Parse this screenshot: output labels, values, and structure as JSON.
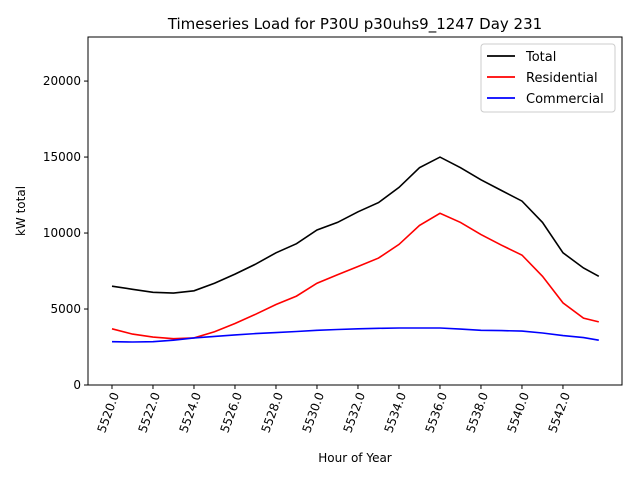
{
  "chart_data": {
    "type": "line",
    "title": "Timeseries Load for P30U p30uhs9_1247  Day 231",
    "xlabel": "Hour of Year",
    "ylabel": "kW total",
    "xlim": [
      5518.83,
      5544.88
    ],
    "ylim": [
      0,
      22900
    ],
    "grid": false,
    "legend_position": "top-right",
    "x_ticks": [
      5520,
      5522,
      5524,
      5526,
      5528,
      5530,
      5532,
      5534,
      5536,
      5538,
      5540,
      5542
    ],
    "x_tick_labels": [
      "5520.0",
      "5522.0",
      "5524.0",
      "5526.0",
      "5528.0",
      "5530.0",
      "5532.0",
      "5534.0",
      "5536.0",
      "5538.0",
      "5540.0",
      "5542.0"
    ],
    "y_ticks": [
      0,
      5000,
      10000,
      15000,
      20000
    ],
    "y_tick_labels": [
      "0",
      "5000",
      "10000",
      "15000",
      "20000"
    ],
    "x": [
      5520,
      5521,
      5522,
      5523,
      5524,
      5525,
      5526,
      5527,
      5528,
      5529,
      5530,
      5531,
      5532,
      5533,
      5534,
      5535,
      5536,
      5537,
      5538,
      5539,
      5540,
      5541,
      5542,
      5543,
      5543.75
    ],
    "series": [
      {
        "name": "Total",
        "color": "#000000",
        "values": [
          6500,
          6300,
          6100,
          6050,
          6200,
          6700,
          7300,
          7950,
          8700,
          9300,
          10200,
          10700,
          11400,
          12000,
          13000,
          14300,
          15000,
          14300,
          13500,
          12800,
          12100,
          10700,
          8700,
          7700,
          7150
        ]
      },
      {
        "name": "Residential",
        "color": "#ff0000",
        "values": [
          3700,
          3350,
          3150,
          3050,
          3100,
          3500,
          4050,
          4650,
          5300,
          5850,
          6700,
          7250,
          7800,
          8350,
          9250,
          10500,
          11300,
          10700,
          9900,
          9200,
          8550,
          7150,
          5400,
          4400,
          4150
        ]
      },
      {
        "name": "Commercial",
        "color": "#0000ff",
        "values": [
          2850,
          2830,
          2850,
          2950,
          3100,
          3200,
          3300,
          3380,
          3450,
          3520,
          3600,
          3650,
          3700,
          3730,
          3750,
          3750,
          3750,
          3680,
          3600,
          3580,
          3550,
          3420,
          3250,
          3120,
          2950
        ]
      }
    ]
  }
}
